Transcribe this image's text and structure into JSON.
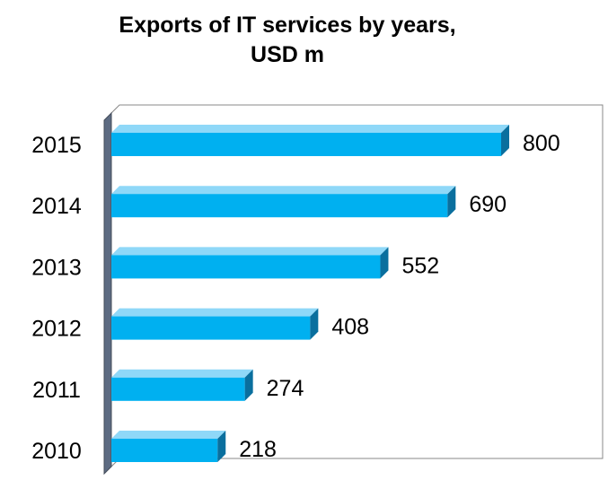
{
  "chart_data": {
    "type": "bar",
    "orientation": "horizontal",
    "title": "Exports of IT services by years,",
    "subtitle": "USD m",
    "categories": [
      "2010",
      "2011",
      "2012",
      "2013",
      "2014",
      "2015"
    ],
    "values": [
      218,
      274,
      408,
      552,
      690,
      800
    ],
    "xlim": [
      0,
      1000
    ],
    "grid": false,
    "legend": "none",
    "colors": {
      "bar_front": "#00b0f0",
      "bar_top": "#8fd8f8",
      "bar_side": "#0a6f9e",
      "wall": "#5d6b82",
      "floor": "#2b3443",
      "frame": "#888888"
    }
  }
}
